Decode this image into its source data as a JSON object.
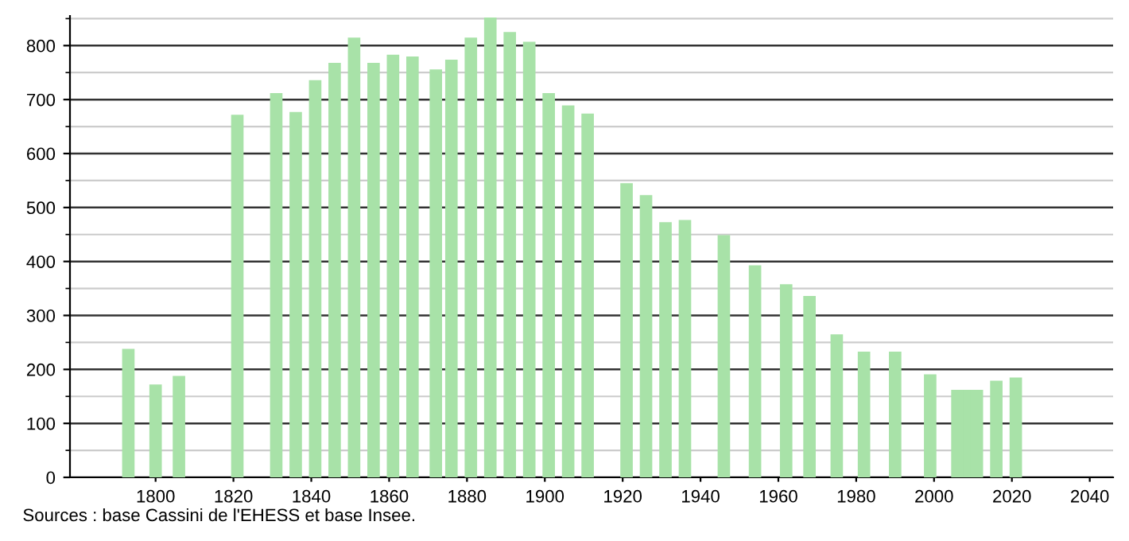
{
  "chart_data": {
    "type": "bar",
    "x": [
      1793,
      1800,
      1806,
      1821,
      1831,
      1836,
      1841,
      1846,
      1851,
      1856,
      1861,
      1866,
      1872,
      1876,
      1881,
      1886,
      1891,
      1896,
      1901,
      1906,
      1911,
      1921,
      1926,
      1931,
      1936,
      1946,
      1954,
      1962,
      1968,
      1975,
      1982,
      1990,
      1999,
      2006,
      2009,
      2011,
      2016,
      2021
    ],
    "values": [
      238,
      172,
      188,
      672,
      712,
      677,
      736,
      768,
      815,
      768,
      783,
      780,
      756,
      774,
      815,
      852,
      825,
      807,
      712,
      689,
      674,
      545,
      523,
      473,
      477,
      449,
      393,
      358,
      336,
      265,
      233,
      233,
      191,
      162,
      162,
      162,
      179,
      185
    ],
    "color": "#a8e2a8",
    "xlim": [
      1778,
      2046
    ],
    "xticks": [
      1800,
      1820,
      1840,
      1860,
      1880,
      1900,
      1920,
      1940,
      1960,
      1980,
      2000,
      2020,
      2040
    ],
    "ylim": [
      0,
      855
    ],
    "yticks": [
      0,
      100,
      200,
      300,
      400,
      500,
      600,
      700,
      800
    ],
    "grid": "y",
    "annotations": [
      "Sources : base Cassini de l'EHESS et base Insee."
    ]
  }
}
